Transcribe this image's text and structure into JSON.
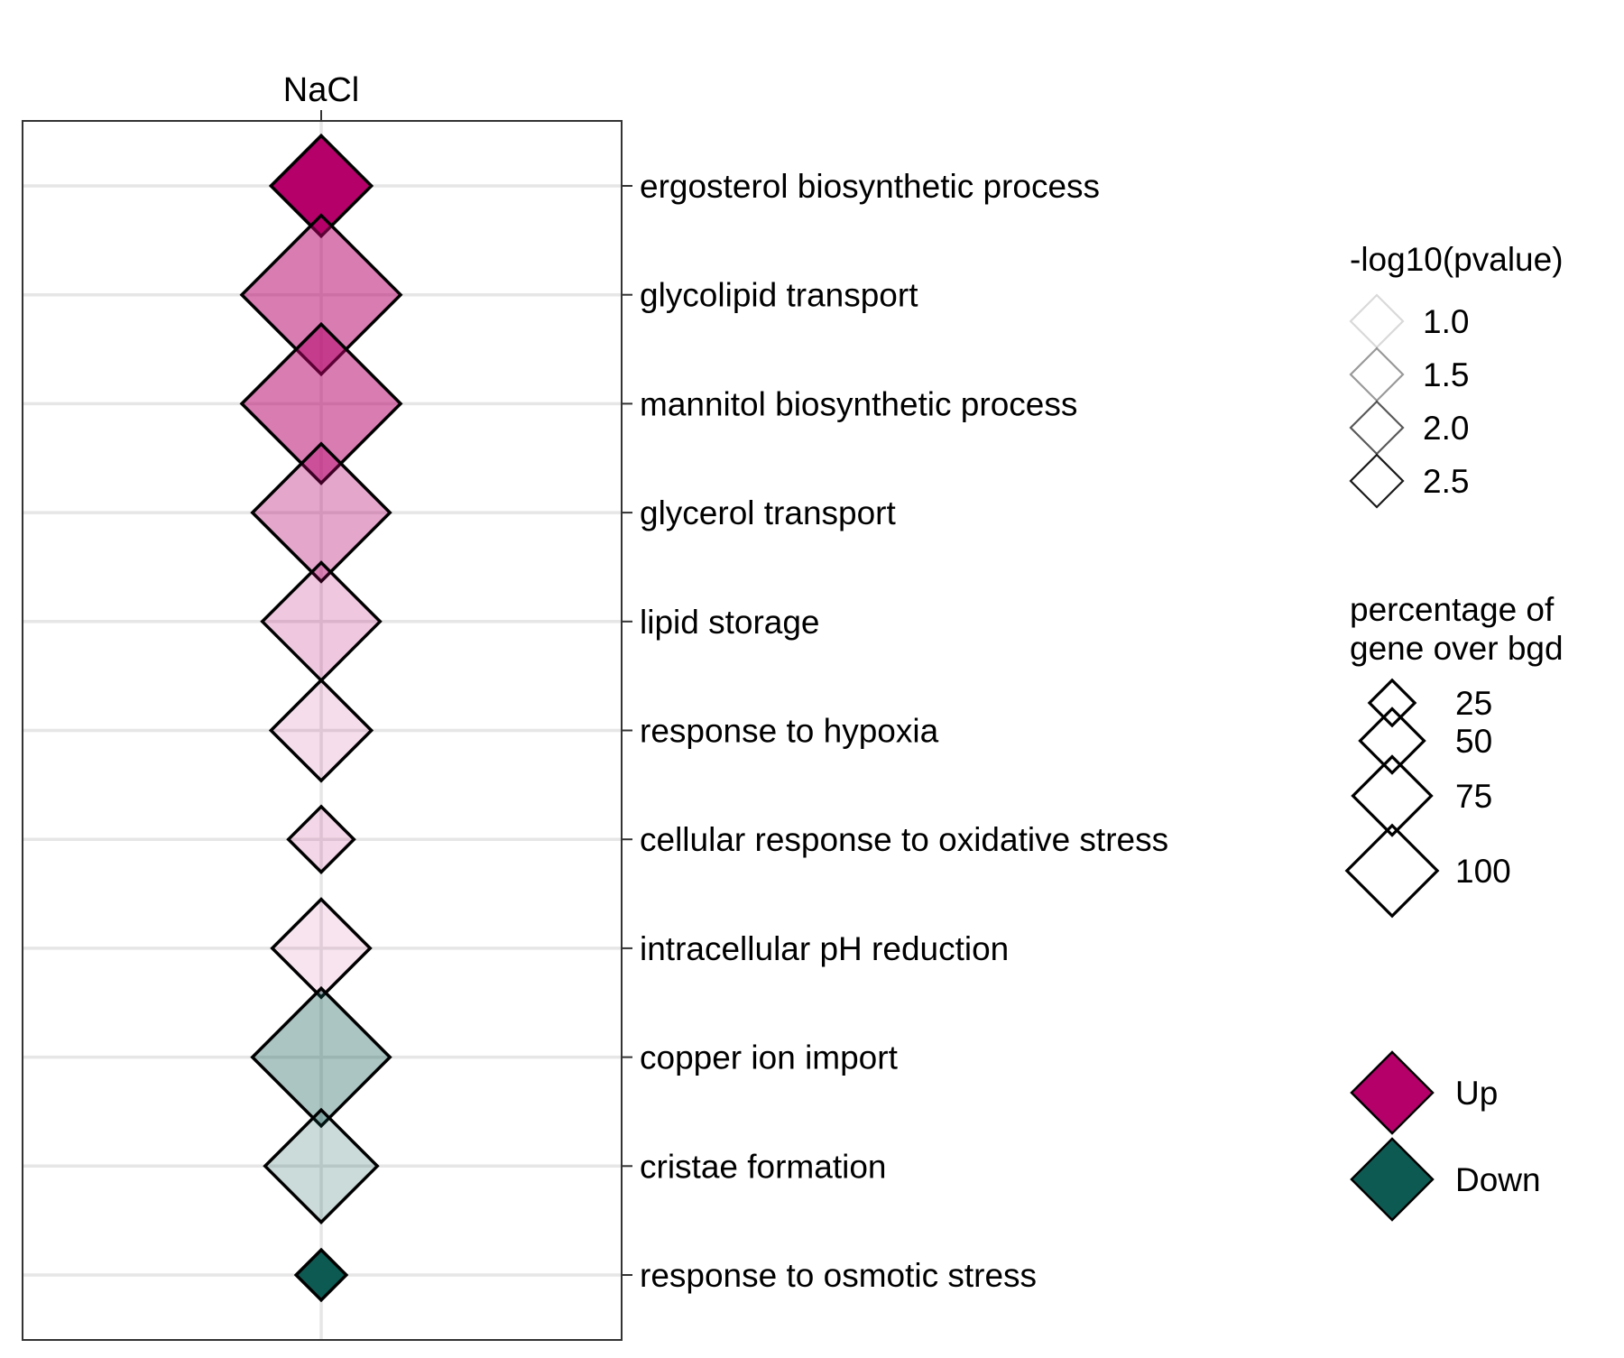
{
  "chart_data": {
    "type": "scatter",
    "x_categories": [
      "NaCl"
    ],
    "y_categories": [
      "ergosterol biosynthetic process",
      "glycolipid transport",
      "mannitol biosynthetic process",
      "glycerol transport",
      "lipid storage",
      "response to hypoxia",
      "cellular response to oxidative stress",
      "intracellular pH reduction",
      "copper ion import",
      "cristae formation",
      "response to osmotic stress"
    ],
    "points": [
      {
        "x": "NaCl",
        "y": "ergosterol biosynthetic process",
        "percentage": 40,
        "neg_log10_pvalue": 2.7,
        "direction": "Up"
      },
      {
        "x": "NaCl",
        "y": "glycolipid transport",
        "percentage": 100,
        "neg_log10_pvalue": 1.8,
        "direction": "Up"
      },
      {
        "x": "NaCl",
        "y": "mannitol biosynthetic process",
        "percentage": 100,
        "neg_log10_pvalue": 1.8,
        "direction": "Up"
      },
      {
        "x": "NaCl",
        "y": "glycerol transport",
        "percentage": 75,
        "neg_log10_pvalue": 1.5,
        "direction": "Up"
      },
      {
        "x": "NaCl",
        "y": "lipid storage",
        "percentage": 55,
        "neg_log10_pvalue": 1.25,
        "direction": "Up"
      },
      {
        "x": "NaCl",
        "y": "response to hypoxia",
        "percentage": 40,
        "neg_log10_pvalue": 1.1,
        "direction": "Up"
      },
      {
        "x": "NaCl",
        "y": "cellular response to oxidative stress",
        "percentage": 17,
        "neg_log10_pvalue": 1.15,
        "direction": "Up"
      },
      {
        "x": "NaCl",
        "y": "intracellular pH reduction",
        "percentage": 38,
        "neg_log10_pvalue": 1.05,
        "direction": "Up"
      },
      {
        "x": "NaCl",
        "y": "copper ion import",
        "percentage": 75,
        "neg_log10_pvalue": 1.5,
        "direction": "Down"
      },
      {
        "x": "NaCl",
        "y": "cristae formation",
        "percentage": 50,
        "neg_log10_pvalue": 1.25,
        "direction": "Down"
      },
      {
        "x": "NaCl",
        "y": "response to osmotic stress",
        "percentage": 10,
        "neg_log10_pvalue": 2.7,
        "direction": "Down"
      }
    ],
    "legend_alpha": {
      "title": "-log10(pvalue)",
      "entries": [
        {
          "label": "1.0",
          "value": 1.0
        },
        {
          "label": "1.5",
          "value": 1.5
        },
        {
          "label": "2.0",
          "value": 2.0
        },
        {
          "label": "2.5",
          "value": 2.5
        }
      ]
    },
    "legend_size": {
      "title_lines": [
        "percentage of",
        "gene over bgd"
      ],
      "entries": [
        {
          "label": "25",
          "value": 25
        },
        {
          "label": "50",
          "value": 50
        },
        {
          "label": "75",
          "value": 75
        },
        {
          "label": "100",
          "value": 100
        }
      ]
    },
    "legend_color": {
      "entries": [
        {
          "label": "Up",
          "color": "#b5006a"
        },
        {
          "label": "Down",
          "color": "#0d5a52"
        }
      ]
    },
    "colors": {
      "Up": "#b5006a",
      "Down": "#0d5a52",
      "grid": "#e6e6e6",
      "axis": "#333333"
    },
    "grid": true,
    "legend_position": "right"
  }
}
